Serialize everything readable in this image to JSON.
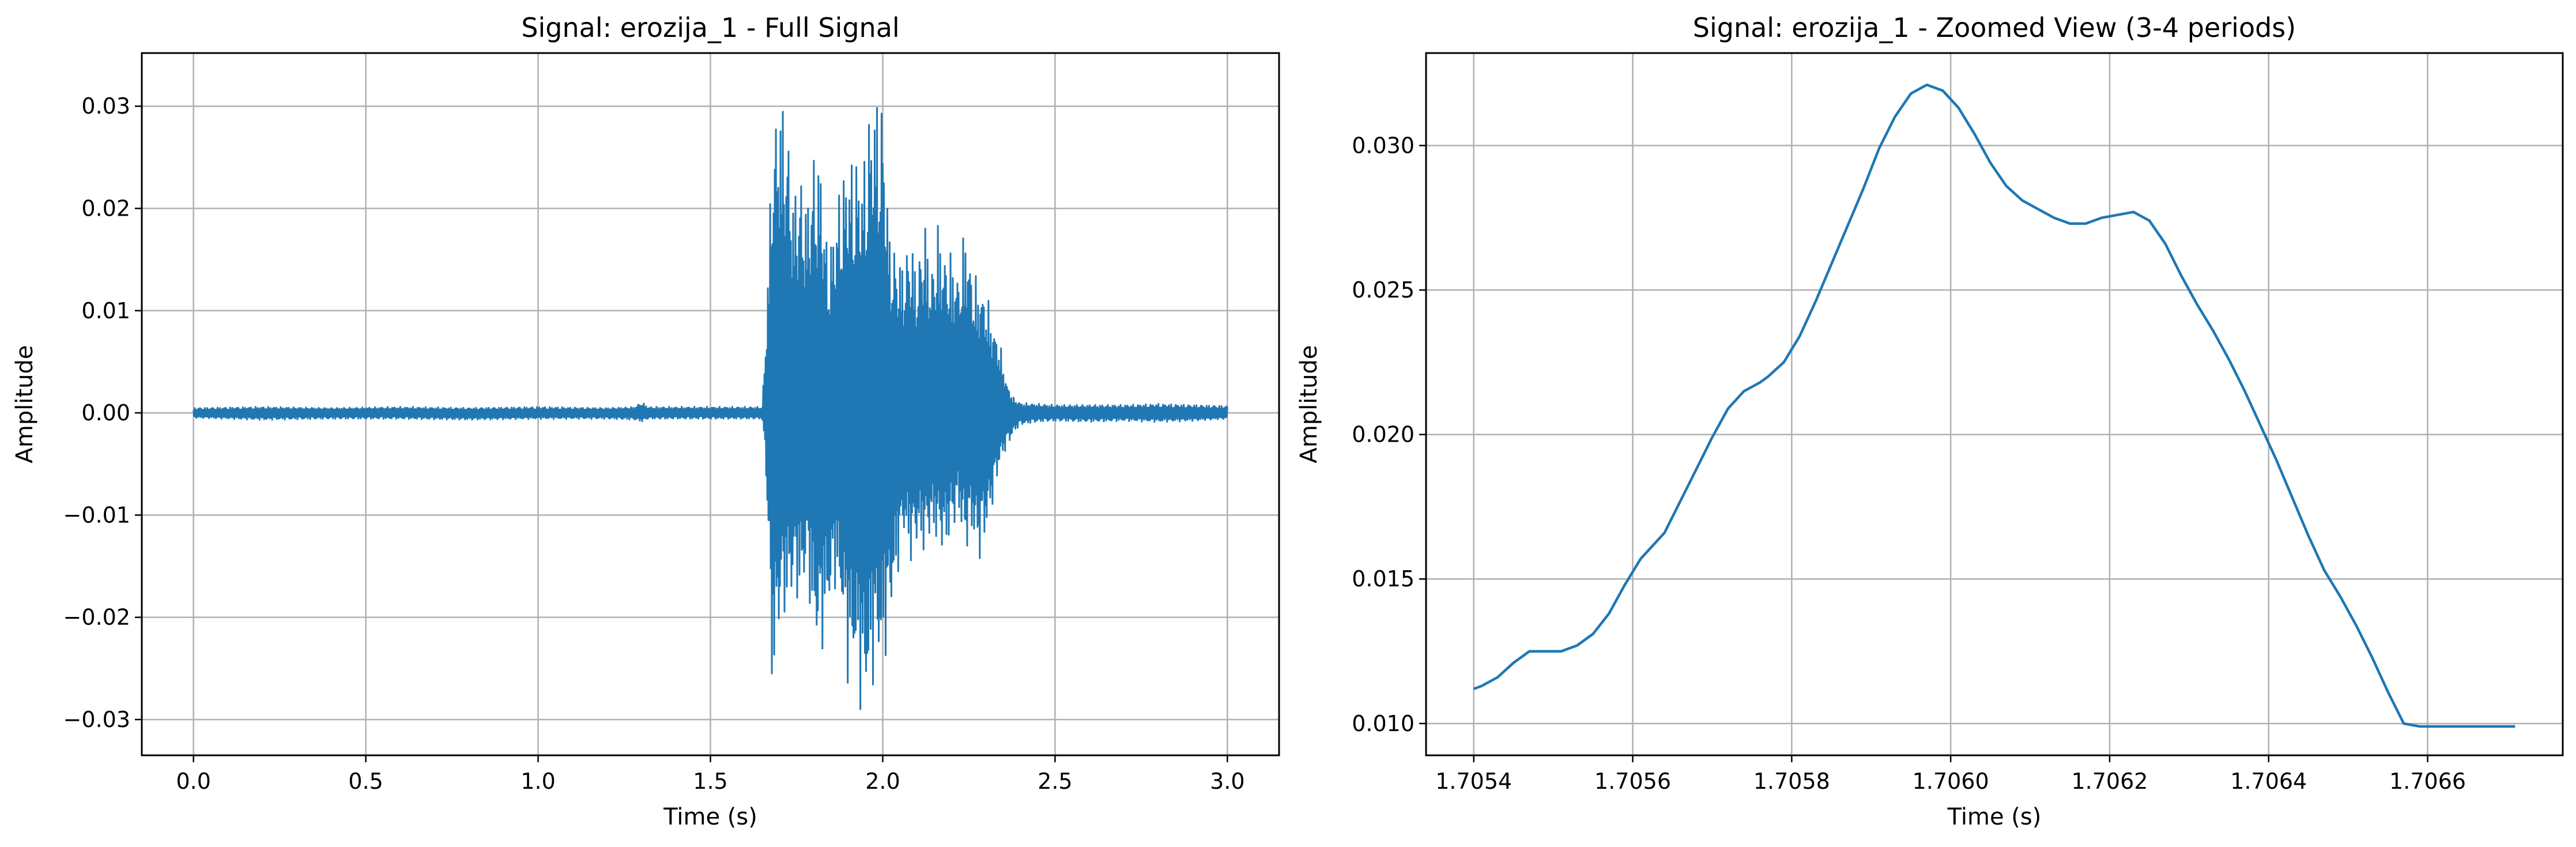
{
  "chart_data": [
    {
      "type": "line",
      "title": "Signal: erozija_1 - Full Signal",
      "xlabel": "Time (s)",
      "ylabel": "Amplitude",
      "xlim": [
        -0.15,
        3.15
      ],
      "ylim": [
        -0.0335,
        0.0352
      ],
      "xticks": [
        0.0,
        0.5,
        1.0,
        1.5,
        2.0,
        2.5,
        3.0
      ],
      "xtick_labels": [
        "0.0",
        "0.5",
        "1.0",
        "1.5",
        "2.0",
        "2.5",
        "3.0"
      ],
      "yticks": [
        -0.03,
        -0.02,
        -0.01,
        0.0,
        0.01,
        0.02,
        0.03
      ],
      "ytick_labels": [
        "−0.03",
        "−0.02",
        "−0.01",
        "0.00",
        "0.01",
        "0.02",
        "0.03"
      ],
      "grid": true,
      "color": "#1f77b4",
      "envelope": {
        "x": [
          0.0,
          0.2,
          0.4,
          0.6,
          0.8,
          1.0,
          1.2,
          1.28,
          1.3,
          1.32,
          1.5,
          1.65,
          1.66,
          1.68,
          1.7,
          1.72,
          1.74,
          1.76,
          1.78,
          1.8,
          1.82,
          1.84,
          1.86,
          1.88,
          1.9,
          1.92,
          1.94,
          1.96,
          1.98,
          2.0,
          2.02,
          2.04,
          2.06,
          2.08,
          2.1,
          2.12,
          2.14,
          2.16,
          2.18,
          2.2,
          2.22,
          2.24,
          2.26,
          2.28,
          2.3,
          2.32,
          2.34,
          2.36,
          2.38,
          2.4,
          2.45,
          2.5,
          2.6,
          2.7,
          2.8,
          2.9,
          3.0
        ],
        "ymax": [
          0.0005,
          0.0006,
          0.0005,
          0.0006,
          0.0005,
          0.0006,
          0.0005,
          0.0006,
          0.0011,
          0.0006,
          0.0006,
          0.0006,
          0.0075,
          0.028,
          0.032,
          0.03,
          0.022,
          0.024,
          0.021,
          0.026,
          0.025,
          0.016,
          0.019,
          0.024,
          0.025,
          0.026,
          0.024,
          0.03,
          0.032,
          0.031,
          0.018,
          0.016,
          0.015,
          0.018,
          0.014,
          0.02,
          0.014,
          0.019,
          0.016,
          0.016,
          0.014,
          0.019,
          0.014,
          0.013,
          0.012,
          0.009,
          0.007,
          0.003,
          0.0015,
          0.001,
          0.0009,
          0.0008,
          0.0008,
          0.0008,
          0.0009,
          0.0008,
          0.0007
        ],
        "ymin": [
          -0.0005,
          -0.0007,
          -0.0006,
          -0.0006,
          -0.0007,
          -0.0006,
          -0.0006,
          -0.0007,
          -0.0009,
          -0.0006,
          -0.0006,
          -0.0006,
          -0.0045,
          -0.029,
          -0.021,
          -0.02,
          -0.018,
          -0.019,
          -0.016,
          -0.023,
          -0.024,
          -0.021,
          -0.017,
          -0.02,
          -0.027,
          -0.026,
          -0.03,
          -0.029,
          -0.025,
          -0.026,
          -0.021,
          -0.017,
          -0.012,
          -0.015,
          -0.013,
          -0.014,
          -0.012,
          -0.013,
          -0.014,
          -0.012,
          -0.01,
          -0.014,
          -0.012,
          -0.015,
          -0.012,
          -0.009,
          -0.005,
          -0.0035,
          -0.002,
          -0.0012,
          -0.0009,
          -0.0008,
          -0.0009,
          -0.0008,
          -0.0009,
          -0.0008,
          -0.0006
        ]
      }
    },
    {
      "type": "line",
      "title": "Signal: erozija_1 - Zoomed View (3-4 periods)",
      "xlabel": "Time (s)",
      "ylabel": "Amplitude",
      "xlim": [
        1.70534,
        1.70677
      ],
      "ylim": [
        0.0089,
        0.0332
      ],
      "xticks": [
        1.7054,
        1.7056,
        1.7058,
        1.706,
        1.7062,
        1.7064,
        1.7066
      ],
      "xtick_labels": [
        "1.7054",
        "1.7056",
        "1.7058",
        "1.7060",
        "1.7062",
        "1.7064",
        "1.7066"
      ],
      "yticks": [
        0.01,
        0.015,
        0.02,
        0.025,
        0.03
      ],
      "ytick_labels": [
        "0.010",
        "0.015",
        "0.020",
        "0.025",
        "0.030"
      ],
      "grid": true,
      "color": "#1f77b4",
      "x": [
        1.7054,
        1.70541,
        1.70543,
        1.70545,
        1.70547,
        1.70549,
        1.70551,
        1.70553,
        1.70555,
        1.70557,
        1.70559,
        1.70561,
        1.70564,
        1.70566,
        1.70568,
        1.7057,
        1.70572,
        1.70574,
        1.70576,
        1.70577,
        1.70579,
        1.70581,
        1.70583,
        1.70585,
        1.70587,
        1.70589,
        1.70591,
        1.70593,
        1.70595,
        1.70597,
        1.70599,
        1.70601,
        1.70603,
        1.70605,
        1.70607,
        1.70609,
        1.70611,
        1.70613,
        1.70615,
        1.70617,
        1.70619,
        1.70621,
        1.70623,
        1.70625,
        1.70627,
        1.70629,
        1.70631,
        1.70633,
        1.70635,
        1.70637,
        1.70639,
        1.70641,
        1.70643,
        1.70645,
        1.70647,
        1.70649,
        1.70651,
        1.70653,
        1.70655,
        1.70657,
        1.70659,
        1.70661,
        1.70663,
        1.70665,
        1.70667,
        1.70669,
        1.70671
      ],
      "y": [
        0.0112,
        0.0113,
        0.0116,
        0.0121,
        0.0125,
        0.0125,
        0.0125,
        0.0127,
        0.0131,
        0.0138,
        0.0148,
        0.0157,
        0.0166,
        0.0177,
        0.0188,
        0.0199,
        0.0209,
        0.0215,
        0.0218,
        0.022,
        0.0225,
        0.0234,
        0.0246,
        0.0259,
        0.0272,
        0.0285,
        0.0299,
        0.031,
        0.0318,
        0.0321,
        0.0319,
        0.0313,
        0.0304,
        0.0294,
        0.0286,
        0.0281,
        0.0278,
        0.0275,
        0.0273,
        0.0273,
        0.0275,
        0.0276,
        0.0277,
        0.0274,
        0.0266,
        0.0255,
        0.0245,
        0.0236,
        0.0226,
        0.0215,
        0.0203,
        0.0191,
        0.0178,
        0.0165,
        0.0153,
        0.0144,
        0.0134,
        0.0123,
        0.0111,
        0.01,
        0.0099,
        0.0099,
        0.0099,
        0.0099,
        0.0099,
        0.0099,
        0.0099
      ]
    }
  ]
}
